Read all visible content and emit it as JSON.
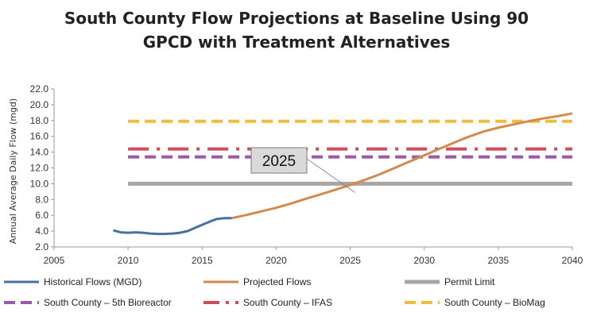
{
  "chart_data": {
    "type": "line",
    "title_lines": [
      "South County Flow Projections at Baseline Using 90",
      "GPCD with Treatment Alternatives"
    ],
    "xlabel": "",
    "ylabel": "Annual Average Daily Flow (mgd)",
    "xlim": [
      2005,
      2040
    ],
    "ylim": [
      2.0,
      22.0
    ],
    "x_ticks": [
      2005,
      2010,
      2015,
      2020,
      2025,
      2030,
      2035,
      2040
    ],
    "y_ticks": [
      2.0,
      4.0,
      6.0,
      8.0,
      10.0,
      12.0,
      14.0,
      16.0,
      18.0,
      20.0,
      22.0
    ],
    "grid": "none",
    "legend_position": "bottom",
    "series": [
      {
        "name": "Historical Flows (MGD)",
        "color": "#4a6fa5",
        "style": "solid",
        "x": [
          2009,
          2009.5,
          2010,
          2010.5,
          2011,
          2011.5,
          2012,
          2012.5,
          2013,
          2013.5,
          2014,
          2014.5,
          2015,
          2015.5,
          2016,
          2016.5,
          2017
        ],
        "y": [
          4.1,
          3.85,
          3.8,
          3.85,
          3.8,
          3.7,
          3.65,
          3.65,
          3.7,
          3.8,
          4.0,
          4.4,
          4.8,
          5.2,
          5.55,
          5.65,
          5.65
        ]
      },
      {
        "name": "Projected Flows",
        "color": "#d4894d",
        "style": "solid",
        "x": [
          2017,
          2018,
          2019,
          2020,
          2021,
          2022,
          2023,
          2024,
          2025,
          2026,
          2027,
          2028,
          2029,
          2030,
          2031,
          2032,
          2033,
          2034,
          2035,
          2036,
          2037,
          2038,
          2039,
          2040
        ],
        "y": [
          5.65,
          6.05,
          6.5,
          6.95,
          7.5,
          8.1,
          8.65,
          9.25,
          9.85,
          10.5,
          11.2,
          12.0,
          12.8,
          13.6,
          14.4,
          15.2,
          15.95,
          16.6,
          17.1,
          17.5,
          17.9,
          18.25,
          18.55,
          18.9
        ]
      },
      {
        "name": "Permit Limit",
        "color": "#a6a6a6",
        "style": "solid",
        "x": [
          2010,
          2040
        ],
        "y": [
          10.0,
          10.0
        ]
      },
      {
        "name": "South County – 5th Bioreactor",
        "color": "#9b59a8",
        "style": "dash",
        "x": [
          2010,
          2040
        ],
        "y": [
          13.4,
          13.4
        ]
      },
      {
        "name": "South County – IFAS",
        "color": "#d24d5c",
        "style": "dashdot",
        "x": [
          2010,
          2040
        ],
        "y": [
          14.4,
          14.4
        ]
      },
      {
        "name": "South County – BioMag",
        "color": "#f0be3c",
        "style": "dash",
        "x": [
          2010,
          2040
        ],
        "y": [
          17.9,
          17.9
        ]
      }
    ],
    "annotations": [
      {
        "text": "2025",
        "points_to": {
          "x": 2025,
          "y": 9.9
        }
      }
    ]
  }
}
